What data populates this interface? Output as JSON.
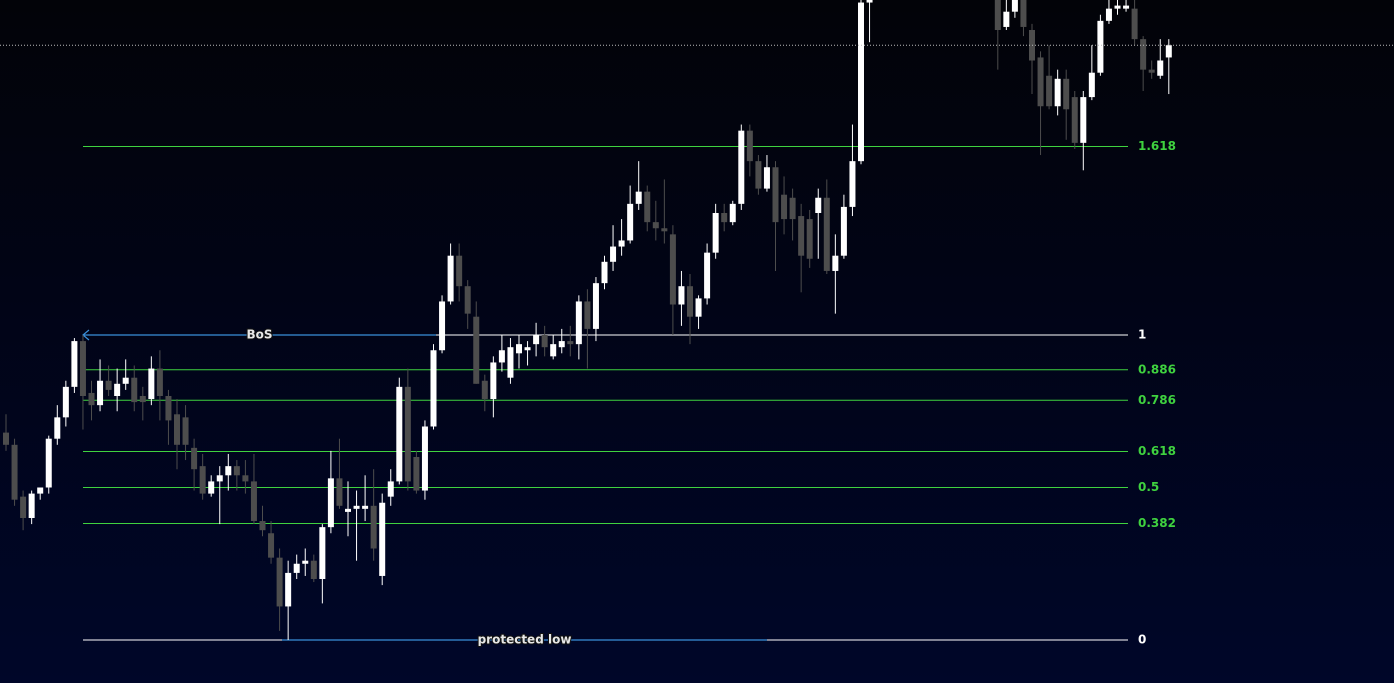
{
  "chart_data": {
    "type": "candlestick",
    "open": [
      0.68,
      0.64,
      0.47,
      0.4,
      0.48,
      0.5,
      0.66,
      0.73,
      0.83,
      0.98,
      0.81,
      0.77,
      0.85,
      0.8,
      0.84,
      0.86,
      0.8,
      0.79,
      0.89,
      0.8,
      0.74,
      0.73,
      0.63,
      0.57,
      0.48,
      0.52,
      0.54,
      0.57,
      0.54,
      0.52,
      0.39,
      0.35,
      0.27,
      0.11,
      0.22,
      0.25,
      0.26,
      0.2,
      0.37,
      0.53,
      0.42,
      0.43,
      0.43,
      0.44,
      0.21,
      0.47,
      0.52,
      0.83,
      0.6,
      0.49,
      0.7,
      0.95,
      1.11,
      1.26,
      1.16,
      1.06,
      0.85,
      0.79,
      0.91,
      0.86,
      0.94,
      0.95,
      0.97,
      1.0,
      0.93,
      0.96,
      0.98,
      0.97,
      1.11,
      1.02,
      1.17,
      1.24,
      1.29,
      1.31,
      1.43,
      1.47,
      1.37,
      1.35,
      1.33,
      1.1,
      1.16,
      1.06,
      1.12,
      1.27,
      1.4,
      1.37,
      1.43,
      1.67,
      1.57,
      1.48,
      1.55,
      1.46,
      1.45,
      1.39,
      1.38,
      1.4,
      1.45,
      1.21,
      1.26,
      1.42,
      1.57,
      2.09,
      null,
      null,
      null,
      null,
      null,
      null,
      null,
      null,
      null,
      null,
      null,
      null,
      null,
      null,
      2.1,
      2.01,
      2.06,
      2.1,
      2.0,
      1.91,
      1.85,
      1.75,
      1.84,
      1.78,
      1.63,
      1.78,
      1.86,
      2.03,
      2.07,
      2.07,
      2.07,
      1.97,
      1.87,
      1.85,
      1.91
    ],
    "high": [
      0.74,
      0.66,
      0.49,
      0.49,
      0.5,
      0.67,
      0.77,
      0.85,
      0.99,
      1.0,
      0.85,
      0.92,
      0.9,
      0.89,
      0.92,
      0.9,
      0.83,
      0.93,
      0.95,
      0.82,
      0.79,
      0.77,
      0.66,
      0.61,
      0.54,
      0.57,
      0.61,
      0.59,
      0.59,
      0.61,
      0.44,
      0.39,
      0.3,
      0.26,
      0.28,
      0.3,
      0.28,
      0.38,
      0.62,
      0.66,
      0.52,
      0.49,
      0.54,
      0.56,
      0.48,
      0.56,
      0.86,
      0.89,
      0.62,
      0.72,
      0.97,
      1.13,
      1.3,
      1.3,
      1.18,
      1.11,
      0.87,
      0.93,
      1.0,
      0.99,
      1.0,
      0.98,
      1.04,
      1.03,
      1.0,
      1.02,
      1.03,
      1.13,
      1.15,
      1.19,
      1.26,
      1.36,
      1.38,
      1.49,
      1.57,
      1.49,
      1.44,
      1.51,
      1.36,
      1.21,
      1.2,
      1.13,
      1.3,
      1.43,
      1.43,
      1.44,
      1.69,
      1.69,
      1.59,
      1.59,
      1.57,
      1.52,
      1.48,
      1.43,
      1.41,
      1.48,
      1.51,
      1.33,
      1.46,
      1.69,
      2.1,
      2.1,
      null,
      null,
      null,
      null,
      null,
      null,
      null,
      null,
      null,
      null,
      null,
      null,
      null,
      null,
      2.1,
      2.1,
      2.1,
      2.1,
      2.02,
      1.93,
      1.95,
      1.87,
      1.87,
      1.8,
      1.8,
      1.95,
      2.05,
      2.1,
      2.1,
      2.1,
      2.1,
      1.98,
      1.9,
      1.97,
      1.97
    ],
    "low": [
      0.62,
      0.44,
      0.36,
      0.38,
      0.46,
      0.48,
      0.64,
      0.7,
      0.81,
      0.69,
      0.72,
      0.75,
      0.8,
      0.75,
      0.82,
      0.75,
      0.72,
      0.77,
      0.72,
      0.64,
      0.56,
      0.59,
      0.49,
      0.46,
      0.47,
      0.38,
      0.49,
      0.49,
      0.48,
      0.38,
      0.34,
      0.25,
      0.03,
      0.0,
      0.2,
      0.21,
      0.19,
      0.12,
      0.35,
      0.43,
      0.34,
      0.26,
      0.39,
      0.26,
      0.18,
      0.44,
      0.51,
      0.49,
      0.48,
      0.46,
      0.69,
      0.94,
      1.1,
      1.11,
      1.02,
      0.84,
      0.75,
      0.73,
      0.88,
      0.84,
      0.89,
      0.9,
      0.93,
      0.93,
      0.92,
      0.94,
      0.93,
      0.92,
      0.89,
      0.98,
      1.15,
      1.21,
      1.26,
      1.3,
      1.41,
      1.34,
      1.31,
      1.3,
      1.0,
      1.03,
      0.97,
      1.02,
      1.1,
      1.25,
      1.34,
      1.36,
      1.41,
      1.52,
      1.46,
      1.47,
      1.21,
      1.33,
      1.31,
      1.14,
      1.22,
      1.25,
      1.2,
      1.07,
      1.25,
      1.39,
      1.56,
      1.96,
      null,
      null,
      null,
      null,
      null,
      null,
      null,
      null,
      null,
      null,
      null,
      null,
      null,
      null,
      1.87,
      2.0,
      2.04,
      1.98,
      1.79,
      1.59,
      1.74,
      1.72,
      1.64,
      1.61,
      1.54,
      1.77,
      1.85,
      2.02,
      2.05,
      2.06,
      1.95,
      1.8,
      1.84,
      1.84,
      1.79
    ],
    "close": [
      0.64,
      0.46,
      0.4,
      0.48,
      0.5,
      0.66,
      0.73,
      0.83,
      0.98,
      0.8,
      0.77,
      0.85,
      0.82,
      0.84,
      0.86,
      0.78,
      0.78,
      0.89,
      0.8,
      0.72,
      0.64,
      0.64,
      0.56,
      0.48,
      0.52,
      0.54,
      0.57,
      0.54,
      0.52,
      0.39,
      0.36,
      0.27,
      0.11,
      0.22,
      0.25,
      0.26,
      0.2,
      0.37,
      0.53,
      0.44,
      0.43,
      0.44,
      0.44,
      0.3,
      0.45,
      0.52,
      0.83,
      0.52,
      0.49,
      0.7,
      0.95,
      1.11,
      1.26,
      1.16,
      1.07,
      0.84,
      0.79,
      0.91,
      0.95,
      0.96,
      0.97,
      0.96,
      1.0,
      0.96,
      0.97,
      0.98,
      0.97,
      1.11,
      1.02,
      1.17,
      1.24,
      1.29,
      1.31,
      1.43,
      1.47,
      1.37,
      1.35,
      1.34,
      1.1,
      1.16,
      1.06,
      1.12,
      1.27,
      1.4,
      1.37,
      1.43,
      1.67,
      1.57,
      1.48,
      1.55,
      1.37,
      1.38,
      1.38,
      1.26,
      1.25,
      1.45,
      1.21,
      1.26,
      1.42,
      1.57,
      2.09,
      2.1,
      null,
      null,
      null,
      null,
      null,
      null,
      null,
      null,
      null,
      null,
      null,
      null,
      null,
      null,
      2.0,
      2.06,
      2.1,
      2.01,
      1.9,
      1.75,
      1.75,
      1.84,
      1.74,
      1.63,
      1.78,
      1.86,
      2.03,
      2.07,
      2.08,
      2.08,
      1.97,
      1.87,
      1.86,
      1.9,
      1.95
    ],
    "up_color": "#ffffff",
    "down_color": "#4d4d4d",
    "last_price": 1.95,
    "levels": [
      0,
      0.382,
      0.5,
      0.618,
      0.786,
      0.886,
      1,
      1.618
    ],
    "level_colors": [
      "#ffffff",
      "#3fd23f",
      "#3fd23f",
      "#3fd23f",
      "#3fd23f",
      "#3fd23f",
      "#ffffff",
      "#3fd23f"
    ],
    "annotations": [
      {
        "text": "BoS",
        "value": 1
      },
      {
        "text": "protected low",
        "value": 0
      }
    ],
    "annotation_color": "#3a8fd9"
  }
}
